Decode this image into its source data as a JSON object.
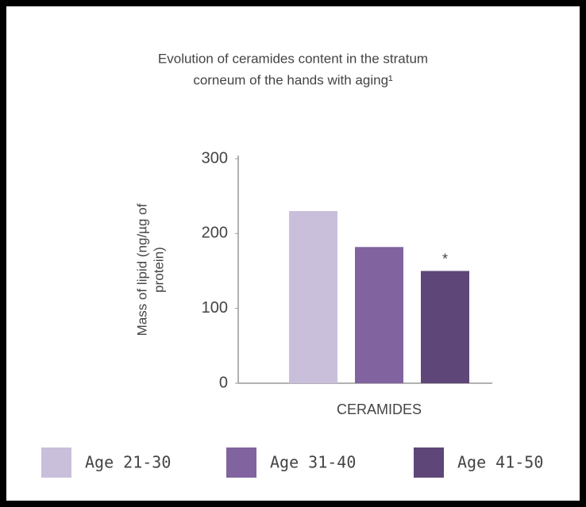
{
  "chart_data": {
    "type": "bar",
    "title": [
      "Evolution of ceramides content in the stratum",
      "corneum of the hands with aging¹"
    ],
    "y_label": [
      "Mass of lipid (ng/µg of",
      "protein)"
    ],
    "categories": [
      "CERAMIDES"
    ],
    "series": [
      {
        "name": "Age 21-30",
        "color": "#c9bfdb",
        "values": [
          230
        ]
      },
      {
        "name": "Age 31-40",
        "color": "#8163a0",
        "values": [
          182
        ]
      },
      {
        "name": "Age 41-50",
        "color": "#5e4678",
        "values": [
          150
        ]
      }
    ],
    "annotation": "*",
    "ylim": [
      0,
      300
    ],
    "yticks": [
      0,
      100,
      200,
      300
    ],
    "grid": false,
    "legend": "bottom"
  }
}
